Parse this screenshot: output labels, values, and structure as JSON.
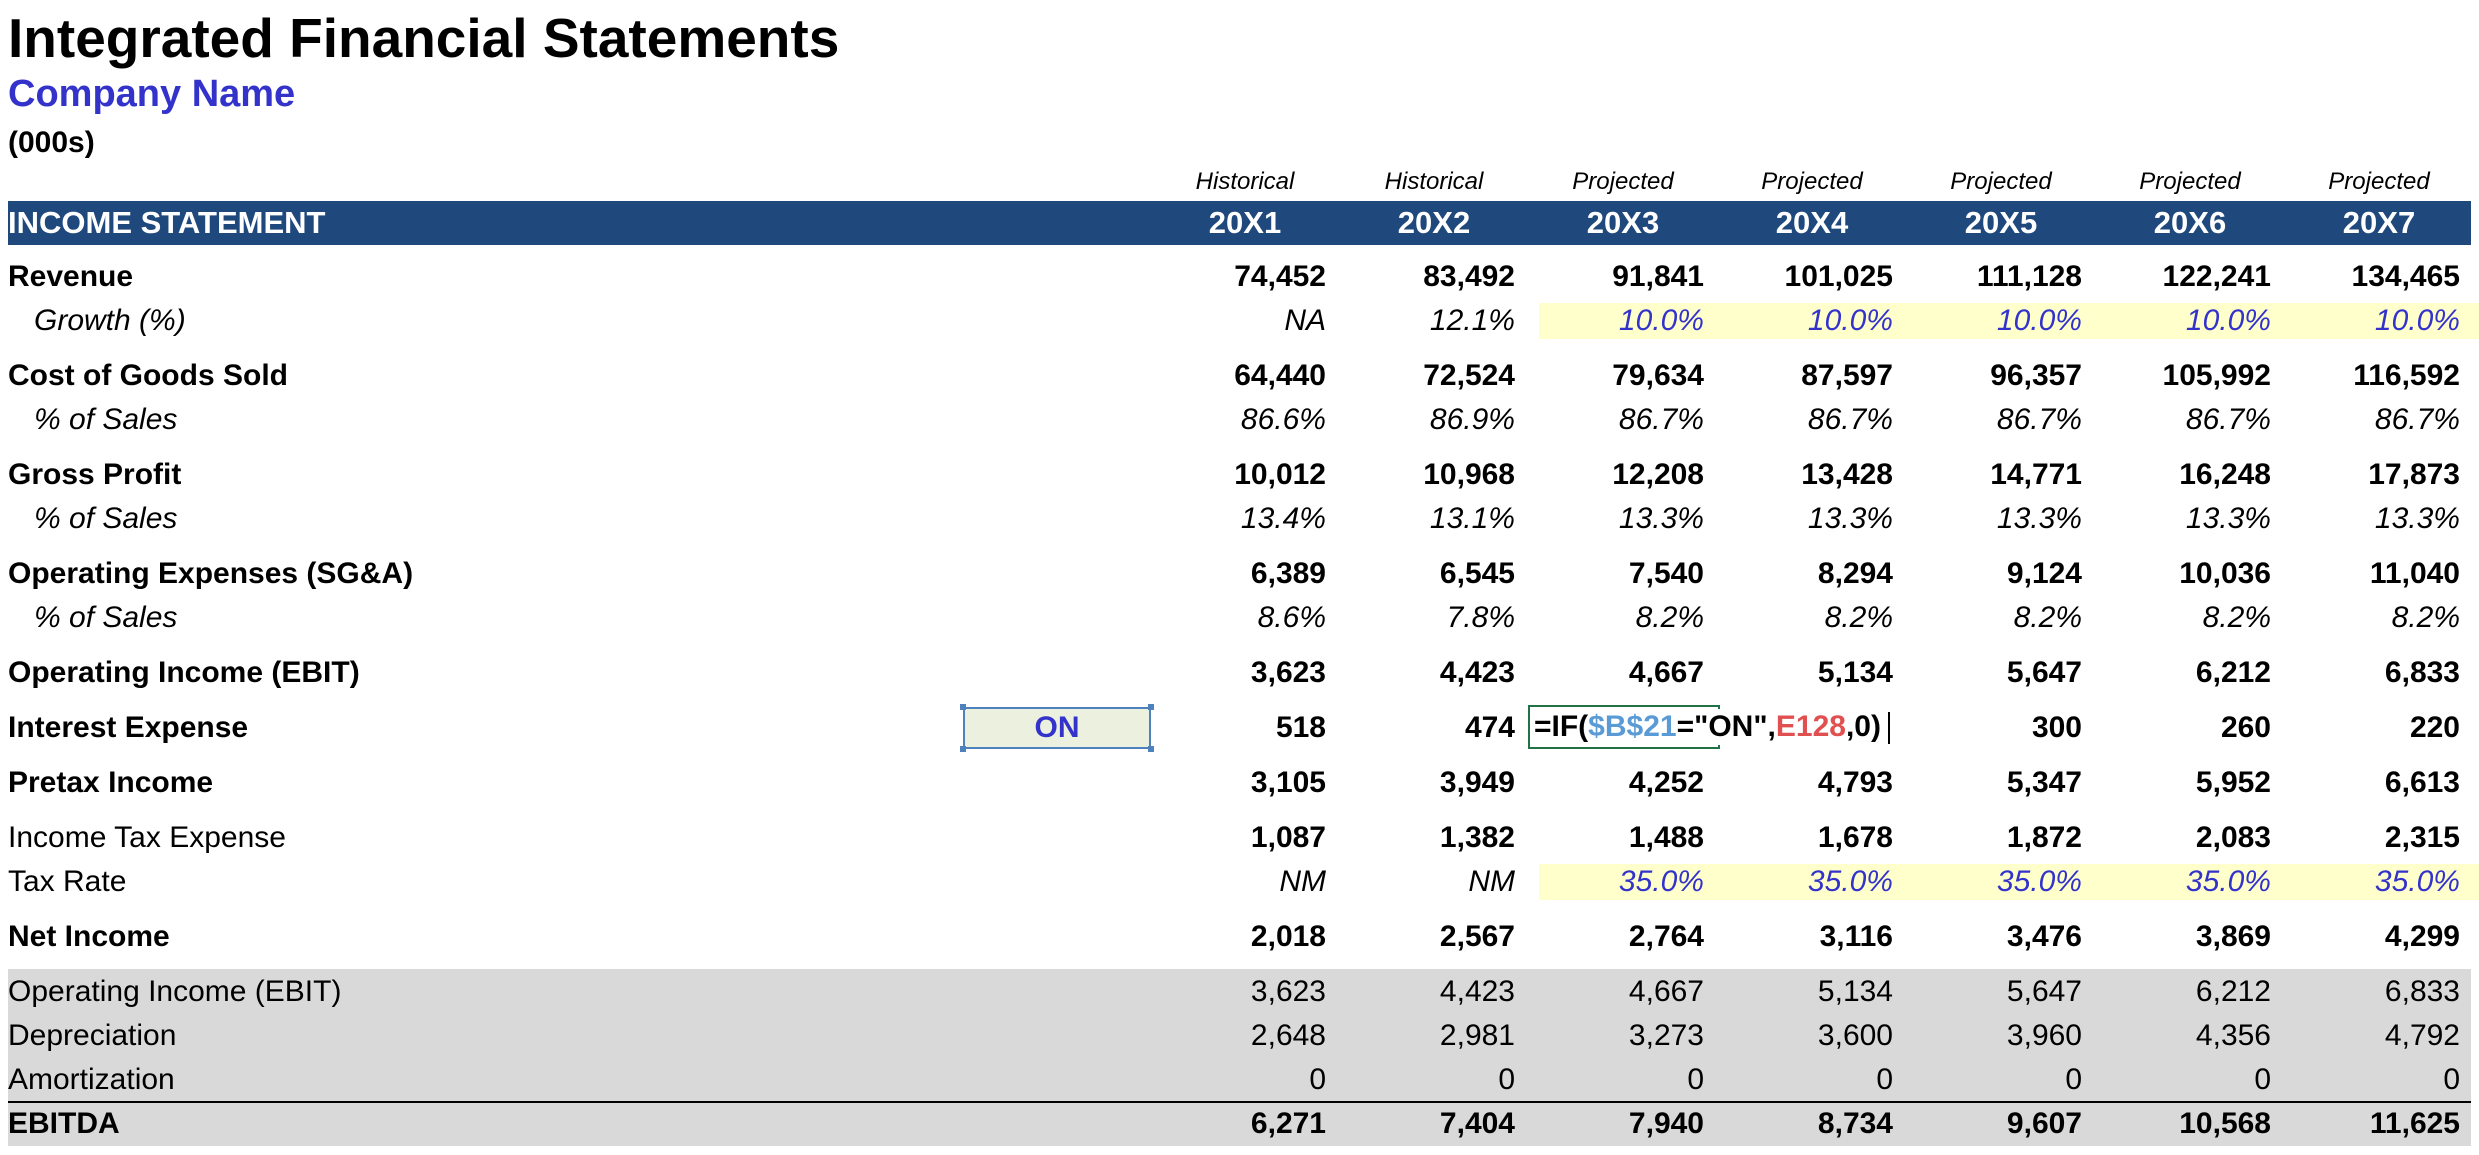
{
  "title": "Integrated Financial Statements",
  "company": "Company Name",
  "units": "(000s)",
  "section": "INCOME STATEMENT",
  "columns": [
    {
      "type": "Historical",
      "year": "20X1"
    },
    {
      "type": "Historical",
      "year": "20X2"
    },
    {
      "type": "Projected",
      "year": "20X3"
    },
    {
      "type": "Projected",
      "year": "20X4"
    },
    {
      "type": "Projected",
      "year": "20X5"
    },
    {
      "type": "Projected",
      "year": "20X6"
    },
    {
      "type": "Projected",
      "year": "20X7"
    }
  ],
  "rows": {
    "revenue": {
      "label": "Revenue",
      "values": [
        "74,452",
        "83,492",
        "91,841",
        "101,025",
        "111,128",
        "122,241",
        "134,465"
      ]
    },
    "growth": {
      "label": "Growth (%)",
      "values": [
        "NA",
        "12.1%",
        "10.0%",
        "10.0%",
        "10.0%",
        "10.0%",
        "10.0%"
      ]
    },
    "cogs": {
      "label": "Cost of Goods Sold",
      "values": [
        "64,440",
        "72,524",
        "79,634",
        "87,597",
        "96,357",
        "105,992",
        "116,592"
      ]
    },
    "cogs_pct": {
      "label": "% of Sales",
      "values": [
        "86.6%",
        "86.9%",
        "86.7%",
        "86.7%",
        "86.7%",
        "86.7%",
        "86.7%"
      ]
    },
    "gross_profit": {
      "label": "Gross Profit",
      "values": [
        "10,012",
        "10,968",
        "12,208",
        "13,428",
        "14,771",
        "16,248",
        "17,873"
      ]
    },
    "gp_pct": {
      "label": "% of Sales",
      "values": [
        "13.4%",
        "13.1%",
        "13.3%",
        "13.3%",
        "13.3%",
        "13.3%",
        "13.3%"
      ]
    },
    "opex": {
      "label": "Operating Expenses (SG&A)",
      "values": [
        "6,389",
        "6,545",
        "7,540",
        "8,294",
        "9,124",
        "10,036",
        "11,040"
      ]
    },
    "opex_pct": {
      "label": "% of Sales",
      "values": [
        "8.6%",
        "7.8%",
        "8.2%",
        "8.2%",
        "8.2%",
        "8.2%",
        "8.2%"
      ]
    },
    "ebit": {
      "label": "Operating Income (EBIT)",
      "values": [
        "3,623",
        "4,423",
        "4,667",
        "5,134",
        "5,647",
        "6,212",
        "6,833"
      ]
    },
    "interest": {
      "label": "Interest Expense",
      "toggle": "ON",
      "values": [
        "518",
        "474",
        "",
        "",
        "300",
        "260",
        "220"
      ]
    },
    "pretax": {
      "label": "Pretax Income",
      "values": [
        "3,105",
        "3,949",
        "4,252",
        "4,793",
        "5,347",
        "5,952",
        "6,613"
      ]
    },
    "tax": {
      "label": "Income Tax Expense",
      "values": [
        "1,087",
        "1,382",
        "1,488",
        "1,678",
        "1,872",
        "2,083",
        "2,315"
      ]
    },
    "tax_rate": {
      "label": "Tax Rate",
      "values": [
        "NM",
        "NM",
        "35.0%",
        "35.0%",
        "35.0%",
        "35.0%",
        "35.0%"
      ]
    },
    "net_income": {
      "label": "Net Income",
      "values": [
        "2,018",
        "2,567",
        "2,764",
        "3,116",
        "3,476",
        "3,869",
        "4,299"
      ]
    },
    "ebit2": {
      "label": "Operating Income (EBIT)",
      "values": [
        "3,623",
        "4,423",
        "4,667",
        "5,134",
        "5,647",
        "6,212",
        "6,833"
      ]
    },
    "depreciation": {
      "label": "Depreciation",
      "values": [
        "2,648",
        "2,981",
        "3,273",
        "3,600",
        "3,960",
        "4,356",
        "4,792"
      ]
    },
    "amortization": {
      "label": "Amortization",
      "values": [
        "0",
        "0",
        "0",
        "0",
        "0",
        "0",
        "0"
      ]
    },
    "ebitda": {
      "label": "EBITDA",
      "values": [
        "6,271",
        "7,404",
        "7,940",
        "8,734",
        "9,607",
        "10,568",
        "11,625"
      ]
    }
  },
  "formula": {
    "prefix": "=IF(",
    "ref1": "$B$21",
    "middle": "=\"ON\",",
    "ref2": "E128",
    "suffix": ",0)"
  },
  "colors": {
    "header_bg": "#1f497d",
    "input_text": "#3333cc",
    "input_bg": "#ffffcc",
    "memo_bg": "#d9d9d9"
  }
}
